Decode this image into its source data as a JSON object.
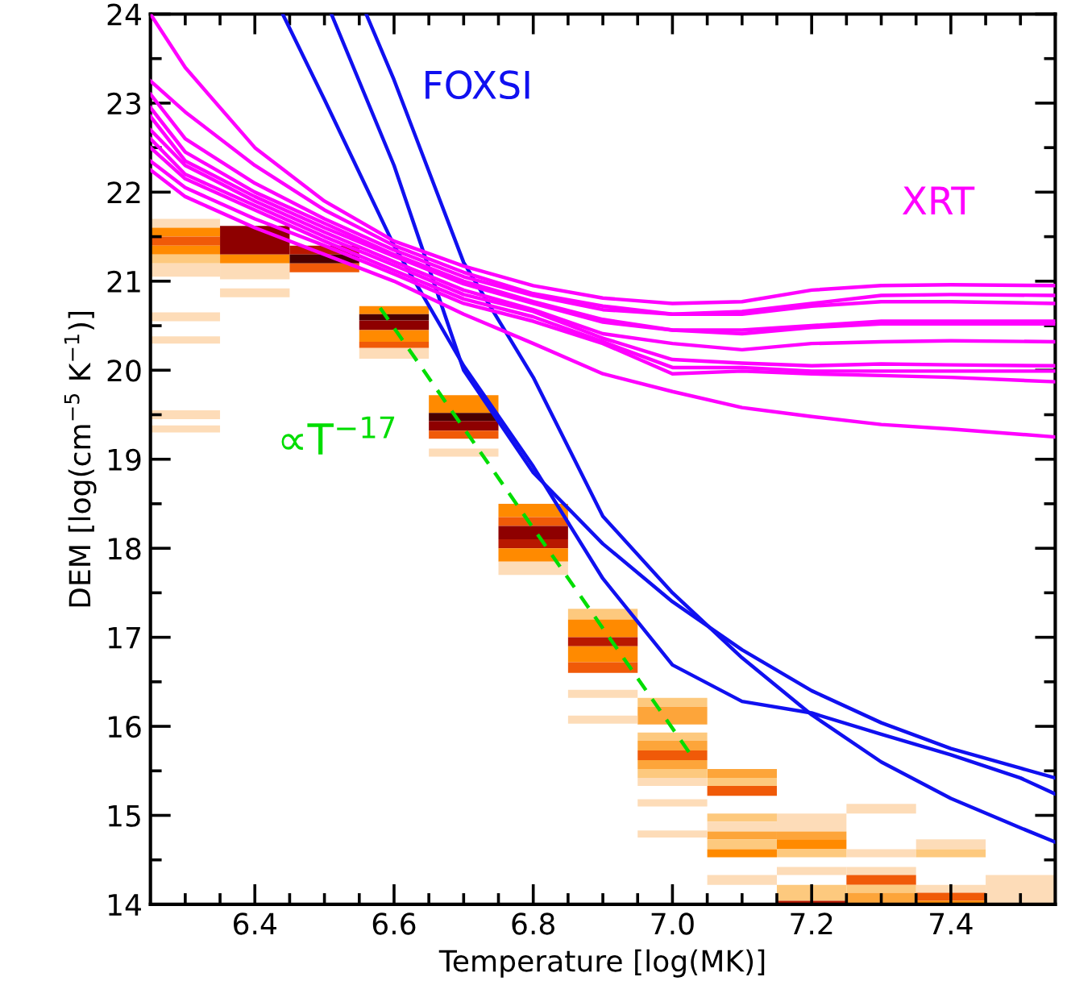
{
  "chart_data": {
    "type": "line",
    "xlabel": "Temperature [log(MK)]",
    "ylabel": "DEM [log(cm$^{−5}$ K$^{−1}$)]",
    "xlim": [
      6.25,
      7.55
    ],
    "ylim": [
      14,
      24
    ],
    "xticks": [
      {
        "value": 6.3,
        "label": null
      },
      {
        "value": 6.35,
        "label": null
      },
      6.4,
      {
        "value": 6.45,
        "label": null
      },
      {
        "value": 6.5,
        "label": null
      },
      {
        "value": 6.55,
        "label": null
      },
      6.6,
      {
        "value": 6.65,
        "label": null
      },
      {
        "value": 6.7,
        "label": null
      },
      {
        "value": 6.75,
        "label": null
      },
      6.8,
      {
        "value": 6.85,
        "label": null
      },
      {
        "value": 6.9,
        "label": null
      },
      {
        "value": 6.95,
        "label": null
      },
      {
        "value": 7.0,
        "label": "7.0"
      },
      {
        "value": 7.05,
        "label": null
      },
      {
        "value": 7.1,
        "label": null
      },
      {
        "value": 7.15,
        "label": null
      },
      7.2,
      {
        "value": 7.25,
        "label": null
      },
      {
        "value": 7.3,
        "label": null
      },
      {
        "value": 7.35,
        "label": null
      },
      7.4,
      {
        "value": 7.45,
        "label": null
      },
      {
        "value": 7.5,
        "label": null
      }
    ],
    "yticks": [
      14,
      {
        "value": 14.5,
        "label": null
      },
      15,
      {
        "value": 15.5,
        "label": null
      },
      16,
      {
        "value": 16.5,
        "label": null
      },
      17,
      {
        "value": 17.5,
        "label": null
      },
      18,
      {
        "value": 18.5,
        "label": null
      },
      19,
      {
        "value": 19.5,
        "label": null
      },
      20,
      {
        "value": 20.5,
        "label": null
      },
      21,
      {
        "value": 21.5,
        "label": null
      },
      22,
      {
        "value": 22.5,
        "label": null
      },
      23,
      {
        "value": 23.5,
        "label": null
      },
      24
    ],
    "grid": false,
    "legend": false,
    "marker": "none",
    "annotations": [
      "∝T$^{−17}$"
    ],
    "series": [
      {
        "type": "bar",
        "x": [
          6.3,
          6.4,
          6.5,
          6.6,
          6.7,
          6.8,
          6.9,
          7.0,
          7.1,
          7.2,
          7.3,
          7.4,
          7.5
        ],
        "base": [
          21.6,
          21.3,
          21.3,
          20.63,
          19.52,
          18.35,
          17.2,
          16.22,
          15.42,
          14.82,
          15.02,
          14.62,
          14.0
        ],
        "values": [
          0.1,
          0.32,
          0.1,
          0.09,
          0.2,
          0.15,
          0.12,
          0.1,
          0.1,
          0.2,
          0.11,
          0.11,
          0.33
        ],
        "colors": [
          "#fddcb8",
          "#8e0000",
          "#b81800",
          "#ff8a00",
          "#ff8a00",
          "#ff8a00",
          "#fdc97e",
          "#fdc97e",
          "#fda53a",
          "#fddcb8",
          "#fddcb8",
          "#fddcb8",
          "#fddcb8"
        ]
      },
      {
        "type": "bar",
        "x": [
          6.3,
          6.4,
          6.5,
          6.6,
          6.7,
          6.8,
          6.9,
          7.0,
          7.1,
          7.2,
          7.3,
          7.4
        ],
        "base": [
          21.5,
          21.2,
          21.2,
          20.56,
          19.43,
          18.25,
          17.0,
          16.02,
          15.33,
          14.73,
          14.53,
          14.53
        ],
        "values": [
          0.1,
          0.1,
          0.1,
          0.07,
          0.09,
          0.1,
          0.2,
          0.2,
          0.09,
          0.09,
          0.09,
          0.09
        ],
        "colors": [
          "#ff8a00",
          "#ff8a00",
          "#4a0000",
          "#4a0000",
          "#4a0000",
          "#f05a08",
          "#ff8a00",
          "#fda53a",
          "#fdc97e",
          "#fda53a",
          "#fddcb8",
          "#fdc97e"
        ]
      },
      {
        "type": "bar",
        "x": [
          6.3,
          6.4,
          6.5,
          6.6,
          6.7,
          6.8,
          6.9,
          7.0,
          7.1,
          7.2,
          7.3,
          7.4
        ],
        "base": [
          21.4,
          21.02,
          21.1,
          20.45,
          19.32,
          18.1,
          16.9,
          15.84,
          15.22,
          14.62,
          14.33,
          14.13
        ],
        "values": [
          0.1,
          0.18,
          0.1,
          0.11,
          0.11,
          0.15,
          0.1,
          0.09,
          0.11,
          0.11,
          0.09,
          0.09
        ],
        "colors": [
          "#f05a08",
          "#fddcb8",
          "#f05a08",
          "#8e0000",
          "#8e0000",
          "#8e0000",
          "#b81800",
          "#fdc97e",
          "#f05a08",
          "#ff8a00",
          "#fddcb8",
          "#fddcb8"
        ]
      },
      {
        "type": "bar",
        "x": [
          6.3,
          6.4,
          6.6,
          6.7,
          6.8,
          6.9,
          7.0,
          7.1,
          7.2,
          7.3,
          7.4
        ],
        "base": [
          21.3,
          20.82,
          20.32,
          19.23,
          18.0,
          16.72,
          15.73,
          14.93,
          14.53,
          14.22,
          14.04
        ],
        "values": [
          0.1,
          0.1,
          0.13,
          0.09,
          0.1,
          0.18,
          0.11,
          0.09,
          0.09,
          0.11,
          0.09
        ],
        "colors": [
          "#ff8a00",
          "#fddcb8",
          "#ff8a00",
          "#f05a08",
          "#b81800",
          "#ff8a00",
          "#fda53a",
          "#fdc97e",
          "#fdc97e",
          "#f05a08",
          "#f05a08"
        ]
      },
      {
        "type": "bar",
        "x": [
          6.3,
          6.6,
          6.7,
          6.8,
          6.9,
          7.0,
          7.1,
          7.2,
          7.3,
          7.4
        ],
        "base": [
          21.2,
          20.25,
          19.03,
          17.85,
          16.6,
          15.62,
          14.82,
          14.33,
          14.13,
          14.0
        ],
        "values": [
          0.1,
          0.07,
          0.09,
          0.15,
          0.12,
          0.11,
          0.11,
          0.09,
          0.09,
          0.04
        ],
        "colors": [
          "#fdc97e",
          "#f05a08",
          "#fddcb8",
          "#ff8a00",
          "#f05a08",
          "#f05a08",
          "#fddcb8",
          "#fddcb8",
          "#fdc97e",
          "#ff8a00"
        ]
      },
      {
        "type": "bar",
        "x": [
          6.3,
          6.6,
          6.8,
          6.9,
          7.0,
          7.1,
          7.2,
          7.3
        ],
        "base": [
          21.05,
          20.13,
          17.7,
          16.32,
          15.52,
          14.73,
          14.04,
          14.0
        ],
        "values": [
          0.15,
          0.12,
          0.15,
          0.09,
          0.1,
          0.09,
          0.18,
          0.13
        ],
        "colors": [
          "#fddcb8",
          "#fddcb8",
          "#fddcb8",
          "#fddcb8",
          "#fda53a",
          "#fda53a",
          "#fdc97e",
          "#fda53a"
        ]
      },
      {
        "type": "bar",
        "x": [
          6.3,
          6.9,
          7.0,
          7.1,
          7.2
        ],
        "base": [
          20.55,
          16.03,
          15.42,
          14.62,
          14.0
        ],
        "values": [
          0.1,
          0.09,
          0.1,
          0.11,
          0.04
        ],
        "colors": [
          "#fddcb8",
          "#fddcb8",
          "#fdc97e",
          "#fdc97e",
          "#b81800"
        ]
      },
      {
        "type": "bar",
        "x": [
          6.3,
          7.0,
          7.1
        ],
        "base": [
          20.3,
          15.33,
          14.53
        ],
        "values": [
          0.08,
          0.09,
          0.09
        ],
        "colors": [
          "#fddcb8",
          "#fddcb8",
          "#ff8a00"
        ]
      },
      {
        "type": "bar",
        "x": [
          6.3,
          7.0,
          7.1
        ],
        "base": [
          19.45,
          15.1,
          14.22
        ],
        "values": [
          0.1,
          0.08,
          0.11
        ],
        "colors": [
          "#fddcb8",
          "#fddcb8",
          "#fddcb8"
        ]
      },
      {
        "type": "bar",
        "x": [
          6.3,
          7.0
        ],
        "base": [
          19.3,
          14.75
        ],
        "values": [
          0.08,
          0.08
        ],
        "colors": [
          "#fddcb8",
          "#fddcb8"
        ]
      },
      {
        "name": "FOXSI",
        "color": "#1010f0",
        "x": [
          6.44,
          6.5,
          6.6,
          6.7,
          6.8,
          6.9,
          7.0,
          7.1,
          7.2,
          7.3,
          7.4,
          7.5,
          7.55
        ],
        "values": [
          24,
          23.04,
          21.4,
          20.05,
          18.92,
          17.66,
          16.69,
          16.28,
          16.15,
          15.91,
          15.68,
          15.42,
          15.24
        ]
      },
      {
        "color": "#1010f0",
        "x": [
          6.51,
          6.6,
          6.7,
          6.8,
          6.9,
          7.0,
          7.1,
          7.2,
          7.3,
          7.4,
          7.5,
          7.55
        ],
        "values": [
          24,
          22.3,
          20.0,
          18.85,
          18.05,
          17.4,
          16.86,
          16.4,
          16.04,
          15.75,
          15.53,
          15.42
        ]
      },
      {
        "color": "#1010f0",
        "x": [
          6.56,
          6.6,
          6.7,
          6.8,
          6.9,
          7.0,
          7.1,
          7.2,
          7.3,
          7.4,
          7.5,
          7.55
        ],
        "values": [
          24,
          23.26,
          21.21,
          19.92,
          18.36,
          17.5,
          16.77,
          16.13,
          15.6,
          15.19,
          14.86,
          14.7
        ]
      },
      {
        "name": "XRT",
        "color": "#ff00ff",
        "x": [
          6.25,
          6.3,
          6.4,
          6.5,
          6.6,
          6.7,
          6.8,
          6.9,
          7.0,
          7.1,
          7.2,
          7.3,
          7.4,
          7.55
        ],
        "values": [
          24.0,
          23.4,
          22.5,
          21.9,
          21.45,
          21.17,
          20.95,
          20.81,
          20.75,
          20.77,
          20.9,
          20.95,
          20.96,
          20.95
        ]
      },
      {
        "color": "#ff00ff",
        "x": [
          6.25,
          6.3,
          6.4,
          6.5,
          6.6,
          6.7,
          6.8,
          6.9,
          7.0,
          7.1,
          7.2,
          7.3,
          7.4,
          7.55
        ],
        "values": [
          23.25,
          22.9,
          22.3,
          21.8,
          21.4,
          21.1,
          20.86,
          20.72,
          20.63,
          20.66,
          20.75,
          20.84,
          20.85,
          20.84
        ]
      },
      {
        "color": "#ff00ff",
        "x": [
          6.25,
          6.3,
          6.4,
          6.5,
          6.6,
          6.7,
          6.8,
          6.9,
          7.0,
          7.1,
          7.2,
          7.3,
          7.4,
          7.55
        ],
        "values": [
          23.1,
          22.6,
          22.1,
          21.7,
          21.35,
          21.05,
          20.84,
          20.68,
          20.63,
          20.63,
          20.72,
          20.77,
          20.77,
          20.75
        ]
      },
      {
        "color": "#ff00ff",
        "x": [
          6.25,
          6.3,
          6.4,
          6.5,
          6.6,
          6.7,
          6.8,
          6.9,
          7.0,
          7.1,
          7.2,
          7.3,
          7.4,
          7.55
        ],
        "values": [
          22.95,
          22.45,
          22.0,
          21.65,
          21.3,
          21.0,
          20.77,
          20.57,
          20.45,
          20.45,
          20.5,
          20.55,
          20.55,
          20.55
        ]
      },
      {
        "color": "#ff00ff",
        "x": [
          6.25,
          6.3,
          6.4,
          6.5,
          6.6,
          6.7,
          6.8,
          6.9,
          7.0,
          7.1,
          7.2,
          7.3,
          7.4,
          7.55
        ],
        "values": [
          22.85,
          22.35,
          21.95,
          21.6,
          21.28,
          20.97,
          20.75,
          20.54,
          20.45,
          20.41,
          20.48,
          20.52,
          20.52,
          20.52
        ]
      },
      {
        "color": "#ff00ff",
        "x": [
          6.25,
          6.3,
          6.4,
          6.5,
          6.6,
          6.7,
          6.8,
          6.9,
          7.0,
          7.1,
          7.2,
          7.3,
          7.4,
          7.55
        ],
        "values": [
          22.7,
          22.3,
          21.9,
          21.55,
          21.22,
          20.9,
          20.68,
          20.41,
          20.3,
          20.23,
          20.3,
          20.32,
          20.33,
          20.32
        ]
      },
      {
        "color": "#ff00ff",
        "x": [
          6.25,
          6.3,
          6.4,
          6.5,
          6.6,
          6.7,
          6.8,
          6.9,
          7.0,
          7.1,
          7.2,
          7.3,
          7.4,
          7.55
        ],
        "values": [
          22.6,
          22.2,
          21.85,
          21.5,
          21.18,
          20.85,
          20.66,
          20.36,
          20.12,
          20.08,
          20.05,
          20.07,
          20.06,
          20.05
        ]
      },
      {
        "color": "#ff00ff",
        "x": [
          6.25,
          6.3,
          6.4,
          6.5,
          6.6,
          6.7,
          6.8,
          6.9,
          7.0,
          7.1,
          7.2,
          7.3,
          7.4,
          7.55
        ],
        "values": [
          22.5,
          22.15,
          21.8,
          21.45,
          21.12,
          20.8,
          20.6,
          20.32,
          20.03,
          20.03,
          19.99,
          19.99,
          19.99,
          19.99
        ]
      },
      {
        "color": "#ff00ff",
        "x": [
          6.25,
          6.3,
          6.4,
          6.5,
          6.6,
          6.7,
          6.8,
          6.9,
          7.0,
          7.1,
          7.2,
          7.3,
          7.4,
          7.55
        ],
        "values": [
          22.35,
          22.05,
          21.7,
          21.4,
          21.08,
          20.75,
          20.55,
          20.3,
          19.96,
          19.99,
          19.96,
          19.94,
          19.92,
          19.87
        ]
      },
      {
        "color": "#ff00ff",
        "x": [
          6.25,
          6.3,
          6.4,
          6.5,
          6.6,
          6.7,
          6.8,
          6.9,
          7.0,
          7.1,
          7.2,
          7.3,
          7.4,
          7.55
        ],
        "values": [
          22.25,
          21.95,
          21.6,
          21.3,
          21.0,
          20.63,
          20.3,
          19.96,
          19.76,
          19.58,
          19.48,
          19.39,
          19.34,
          19.25
        ]
      },
      {
        "color": "#00dd00",
        "line_style": "dashed",
        "x": [
          6.58,
          7.03
        ],
        "values": [
          20.7,
          15.64
        ]
      }
    ]
  }
}
